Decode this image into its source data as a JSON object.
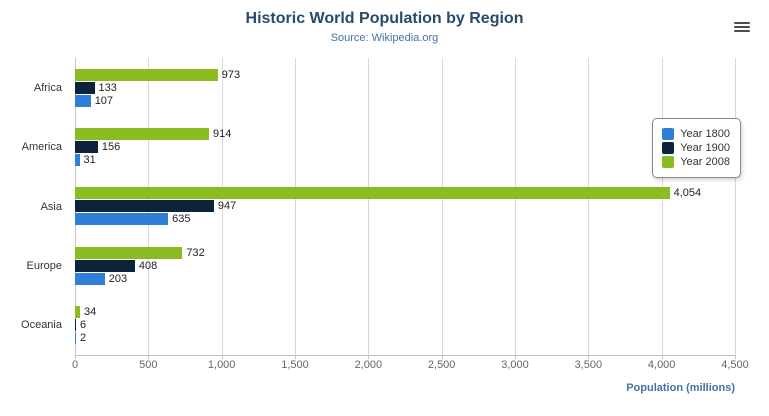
{
  "header": {
    "title": "Historic World Population by Region",
    "subtitle": "Source: Wikipedia.org"
  },
  "chart_data": {
    "type": "bar",
    "title": "Historic World Population by Region",
    "subtitle": "Source: Wikipedia.org",
    "categories": [
      "Africa",
      "America",
      "Asia",
      "Europe",
      "Oceania"
    ],
    "series": [
      {
        "name": "Year 1800",
        "color": "#2f7ed8",
        "values": [
          107,
          31,
          635,
          203,
          2
        ]
      },
      {
        "name": "Year 1900",
        "color": "#0d233a",
        "values": [
          133,
          156,
          947,
          408,
          6
        ]
      },
      {
        "name": "Year 2008",
        "color": "#8bbc21",
        "values": [
          973,
          914,
          4054,
          732,
          34
        ]
      }
    ],
    "row_order_top_to_bottom": [
      "Year 2008",
      "Year 1900",
      "Year 1800"
    ],
    "xlabel": "Population (millions)",
    "xlim": [
      0,
      4500
    ],
    "xticks": [
      0,
      500,
      1000,
      1500,
      2000,
      2500,
      3000,
      3500,
      4000,
      4500
    ],
    "grid": true,
    "legend_position": "right",
    "legend_labels": [
      "Year 1800",
      "Year 1900",
      "Year 2008"
    ],
    "colors": {
      "title": "#274b6d",
      "subtitle": "#4572a7",
      "axis_title": "#4572a7",
      "year_1800": "#2f7ed8",
      "year_1900": "#0d233a",
      "year_2008": "#8bbc21"
    }
  }
}
